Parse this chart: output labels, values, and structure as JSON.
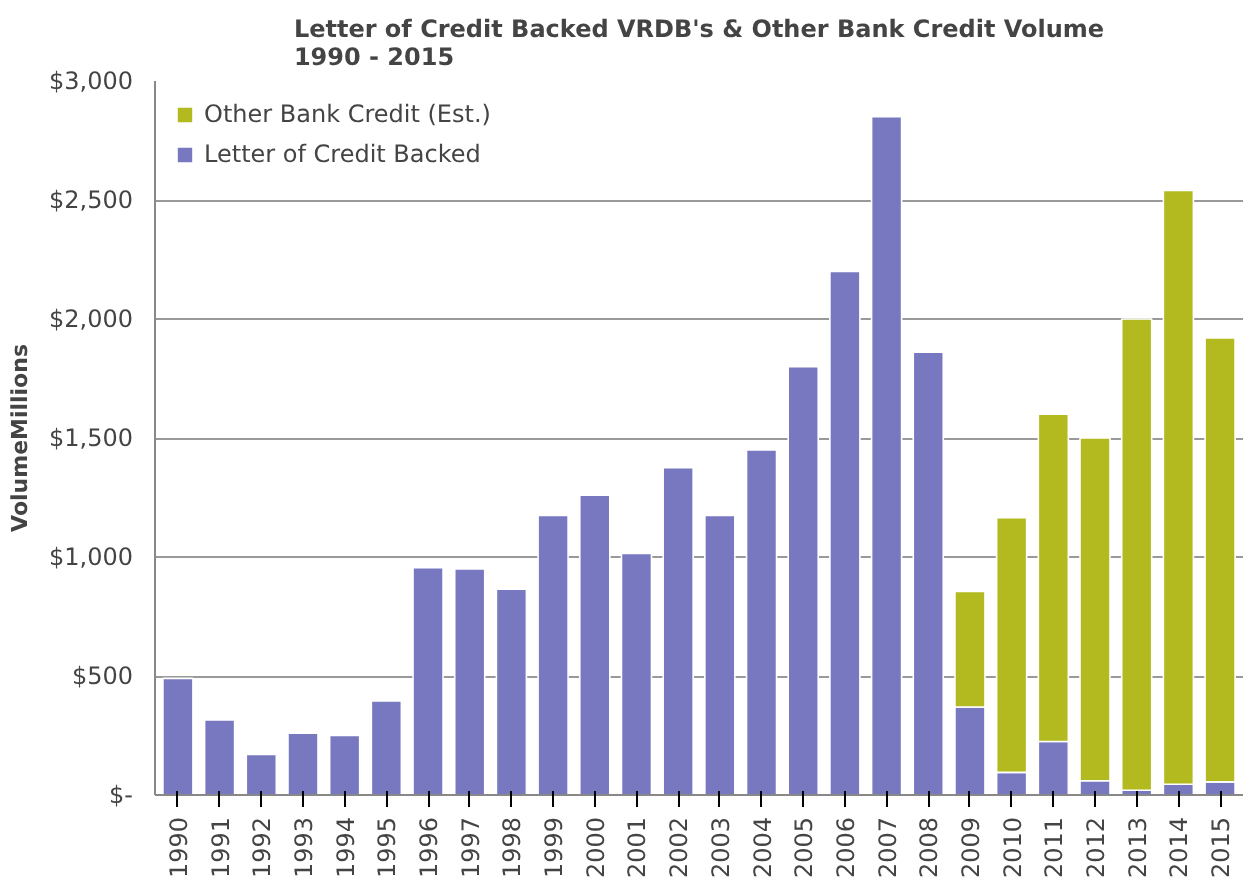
{
  "chart_data": {
    "type": "bar",
    "title": "Letter of Credit Backed VRDB's & Other Bank Credit Volume\n1990 - 2015",
    "ylabel": "VolumeMillions",
    "categories": [
      "1990",
      "1991",
      "1992",
      "1993",
      "1994",
      "1995",
      "1996",
      "1997",
      "1998",
      "1999",
      "2000",
      "2001",
      "2002",
      "2003",
      "2004",
      "2005",
      "2006",
      "2007",
      "2008",
      "2009",
      "2010",
      "2011",
      "2012",
      "2013",
      "2014",
      "2015"
    ],
    "stacked": true,
    "series": [
      {
        "name": "Letter of Credit Backed",
        "color": "#7878c0",
        "values": [
          490,
          315,
          170,
          260,
          250,
          395,
          955,
          950,
          865,
          1175,
          1260,
          1015,
          1375,
          1175,
          1450,
          1800,
          2200,
          2850,
          1860,
          370,
          95,
          225,
          60,
          20,
          45,
          55
        ]
      },
      {
        "name": "Other Bank Credit (Est.)",
        "color": "#b2ba20",
        "values": [
          null,
          null,
          null,
          null,
          null,
          null,
          null,
          null,
          null,
          null,
          null,
          null,
          null,
          null,
          null,
          null,
          null,
          null,
          null,
          485,
          1070,
          1375,
          1440,
          1980,
          2495,
          1865
        ]
      }
    ],
    "ylim": [
      0,
      3000
    ],
    "yticks": [
      {
        "value": 0,
        "label": "$-"
      },
      {
        "value": 500,
        "label": "$500"
      },
      {
        "value": 1000,
        "label": "$1,000"
      },
      {
        "value": 1500,
        "label": "$1,500"
      },
      {
        "value": 2000,
        "label": "$2,000"
      },
      {
        "value": 2500,
        "label": "$2,500"
      },
      {
        "value": 3000,
        "label": "$3,000"
      }
    ],
    "grid": "y",
    "legend": "top left"
  }
}
